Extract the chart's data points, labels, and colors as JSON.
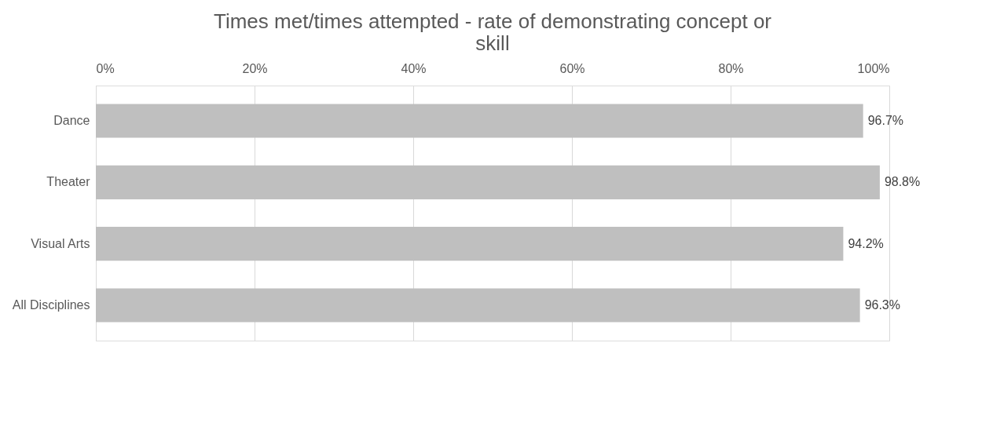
{
  "chart_data": {
    "type": "bar",
    "orientation": "horizontal",
    "title": "Times met/times attempted - rate of demonstrating concept or skill",
    "categories": [
      "Dance",
      "Theater",
      "Visual Arts",
      "All Disciplines"
    ],
    "values": [
      96.7,
      98.8,
      94.2,
      96.3
    ],
    "value_labels": [
      "96.7%",
      "98.8%",
      "94.2%",
      "96.3%"
    ],
    "color": "#bfbfbf",
    "xlim": [
      0,
      100
    ],
    "xticks": [
      {
        "value": 0,
        "label": "0%"
      },
      {
        "value": 20,
        "label": "20%"
      },
      {
        "value": 40,
        "label": "40%"
      },
      {
        "value": 60,
        "label": "60%"
      },
      {
        "value": 80,
        "label": "80%"
      },
      {
        "value": 100,
        "label": "100%"
      }
    ],
    "grid": "x"
  }
}
